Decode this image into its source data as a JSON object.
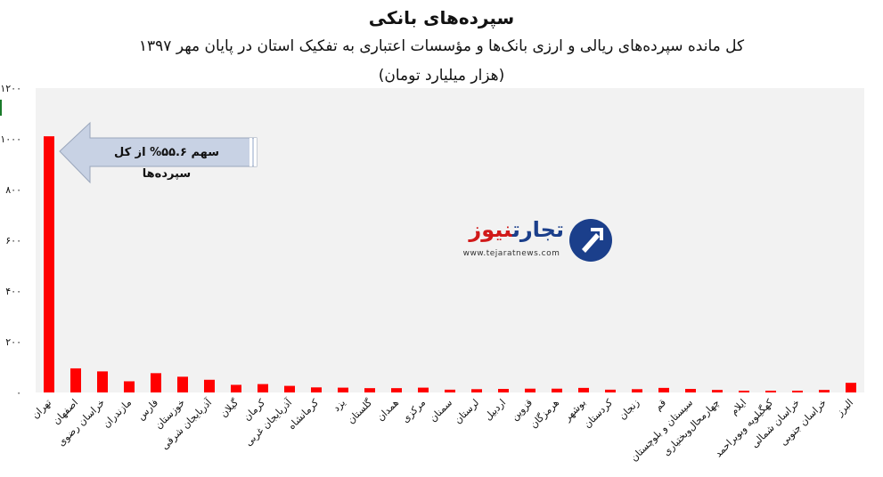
{
  "chart_data": {
    "type": "bar",
    "title": "سپرده‌های بانکی",
    "subtitle": "کل مانده سپرده‌های ریالی و ارزی بانک‌ها و مؤسسات اعتباری  به تفکیک استان در پایان مهر ۱۳۹۷",
    "unit_label": "(هزار میلیارد تومان)",
    "ylim": [
      0,
      1200
    ],
    "yticks": [
      "۰",
      "۲۰۰",
      "۴۰۰",
      "۶۰۰",
      "۸۰۰",
      "۱۰۰۰",
      "۱۲۰۰"
    ],
    "ytick_values": [
      0,
      200,
      400,
      600,
      800,
      1000,
      1200
    ],
    "grid": false,
    "bar_color": "#ff0000",
    "plot_bg": "#f2f2f2",
    "categories": [
      "تهران",
      "اصفهان",
      "خراسان رضوی",
      "مازندران",
      "فارس",
      "خوزستان",
      "آذربایجان شرقی",
      "گیلان",
      "کرمان",
      "آذربایجان غربی",
      "کرمانشاه",
      "یزد",
      "گلستان",
      "همدان",
      "مرکزی",
      "سمنان",
      "لرستان",
      "اردبیل",
      "قزوین",
      "هرمزگان",
      "بوشهر",
      "کردستان",
      "زنجان",
      "قم",
      "سیستان و بلوچستان",
      "چهارمحال‌وبختیاری",
      "ایلام",
      "کهگیلویه وبویراحمد",
      "خراسان شمالی",
      "خراسان جنوبی",
      "البرز"
    ],
    "values": [
      1010,
      95,
      83,
      44,
      76,
      62,
      50,
      30,
      33,
      26,
      20,
      19,
      17,
      17,
      19,
      11,
      13,
      14,
      15,
      15,
      18,
      11,
      13,
      18,
      14,
      10,
      7,
      7,
      7,
      10,
      38
    ]
  },
  "callout": {
    "text": "سهم ۵۵.۶% از کل سپرده‌ها",
    "fill": "#c8d2e4"
  },
  "logo": {
    "name_part1": "تجارت",
    "name_part2": "نیوز",
    "url": "www.tejaratnews.com"
  }
}
